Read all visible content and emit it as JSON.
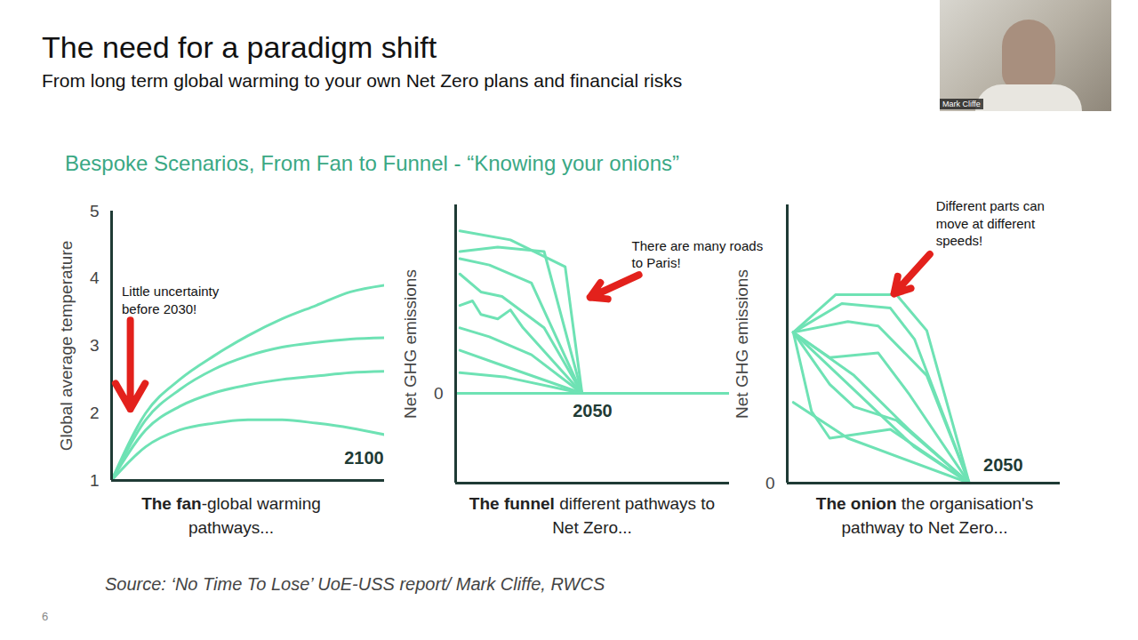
{
  "title": "The need for a paradigm shift",
  "subtitle": "From long term global warming to your own Net Zero plans and financial risks",
  "heading": "Bespoke Scenarios, From Fan to Funnel - “Knowing your onions”",
  "source": "Source: ‘No Time To Lose’ UoE-USS report/ Mark Cliffe, RWCS",
  "page_number": "6",
  "presenter": "Mark Cliffe",
  "chart_data": [
    {
      "type": "line",
      "caption": "The fan-global warming pathways...",
      "caption_bold": "The fan",
      "ylabel": "Global average temperature",
      "xlim": [
        2020,
        2100
      ],
      "xticks": [],
      "ylim": [
        1,
        5
      ],
      "yticks": [
        1,
        2,
        3,
        4,
        5
      ],
      "tick_labels": "y",
      "color": "#6ee2b4",
      "line_style": "smooth",
      "series": [
        {
          "x": [
            2020,
            2030,
            2040,
            2050,
            2060,
            2070,
            2080,
            2090,
            2100
          ],
          "values": [
            1,
            2.0,
            2.5,
            2.85,
            3.15,
            3.4,
            3.6,
            3.8,
            3.9
          ]
        },
        {
          "x": [
            2020,
            2030,
            2040,
            2050,
            2060,
            2070,
            2080,
            2090,
            2100
          ],
          "values": [
            1,
            1.9,
            2.35,
            2.65,
            2.85,
            2.98,
            3.05,
            3.1,
            3.12
          ]
        },
        {
          "x": [
            2020,
            2030,
            2040,
            2050,
            2060,
            2070,
            2080,
            2090,
            2100
          ],
          "values": [
            1,
            1.75,
            2.1,
            2.3,
            2.42,
            2.5,
            2.55,
            2.6,
            2.62
          ]
        },
        {
          "x": [
            2020,
            2030,
            2040,
            2050,
            2060,
            2070,
            2080,
            2090,
            2100
          ],
          "values": [
            1,
            1.5,
            1.75,
            1.85,
            1.9,
            1.9,
            1.85,
            1.78,
            1.68
          ]
        }
      ],
      "annotations": [
        {
          "text": [
            "Little uncertainty",
            "before 2030!"
          ],
          "x": 2023,
          "y": 3.92,
          "arrow": {
            "x1": 2025.5,
            "y1": 3.38,
            "x2": 2025.5,
            "y2": 2.06
          }
        },
        {
          "text": [
            "2100"
          ],
          "x": 2094,
          "y": 1.33
        }
      ]
    },
    {
      "type": "line",
      "caption": "The funnel different pathways to Net Zero...",
      "caption_bold": "The funnel",
      "ylabel": "Net GHG emissions",
      "xlim": [
        2020,
        2085
      ],
      "xticks": [],
      "ylim": [
        -1,
        2.1
      ],
      "yticks": [
        0
      ],
      "tick_labels": "y",
      "color": "#6ee2b4",
      "line_style": "solid",
      "series": [
        {
          "x": [
            2020,
            2085
          ],
          "values": [
            0,
            0
          ]
        },
        {
          "x": [
            2021,
            2033,
            2046,
            2050
          ],
          "values": [
            1.81,
            1.71,
            1.41,
            0
          ]
        },
        {
          "x": [
            2021,
            2030,
            2041,
            2050
          ],
          "values": [
            1.58,
            1.63,
            1.58,
            0
          ]
        },
        {
          "x": [
            2021,
            2028,
            2038,
            2050
          ],
          "values": [
            1.5,
            1.43,
            1.23,
            0
          ]
        },
        {
          "x": [
            2021,
            2026,
            2031,
            2041,
            2050
          ],
          "values": [
            1.33,
            1.13,
            1.08,
            0.73,
            0
          ]
        },
        {
          "x": [
            2021,
            2024,
            2026,
            2030,
            2033,
            2036,
            2050
          ],
          "values": [
            0.98,
            1.03,
            0.88,
            0.83,
            0.93,
            0.73,
            0
          ]
        },
        {
          "x": [
            2021,
            2028,
            2038,
            2050
          ],
          "values": [
            0.73,
            0.63,
            0.43,
            0
          ]
        },
        {
          "x": [
            2021,
            2030,
            2050
          ],
          "values": [
            0.48,
            0.33,
            0
          ]
        },
        {
          "x": [
            2021,
            2032,
            2050
          ],
          "values": [
            0.23,
            0.18,
            0
          ]
        }
      ],
      "annotations": [
        {
          "text": [
            "There are many roads",
            "to Paris!"
          ],
          "x": 2061.8,
          "y": 1.73,
          "arrow": {
            "x1": 2063.5,
            "y1": 1.32,
            "x2": 2051.9,
            "y2": 1.07
          }
        },
        {
          "text": [
            "2050"
          ],
          "x": 2052.5,
          "y": -0.2
        }
      ]
    },
    {
      "type": "line",
      "caption": "The onion the organisation's pathway to Net Zero...",
      "caption_bold": "The onion",
      "ylabel": "Net GHG emissions",
      "xlim": [
        2020,
        2065
      ],
      "xticks": [],
      "ylim": [
        0,
        3.1
      ],
      "yticks": [
        0
      ],
      "tick_labels": "y",
      "color": "#6ee2b4",
      "line_style": "solid",
      "series": [
        {
          "x": [
            2021,
            2028,
            2038,
            2043,
            2050
          ],
          "values": [
            1.68,
            2.1,
            2.1,
            1.7,
            0
          ]
        },
        {
          "x": [
            2021,
            2029,
            2037,
            2041,
            2050
          ],
          "values": [
            1.68,
            2.0,
            1.95,
            1.6,
            0
          ]
        },
        {
          "x": [
            2021,
            2030,
            2035,
            2043,
            2050
          ],
          "values": [
            1.68,
            1.8,
            1.75,
            1.2,
            0
          ]
        },
        {
          "x": [
            2021,
            2027,
            2035,
            2040,
            2050
          ],
          "values": [
            1.68,
            1.4,
            1.45,
            1.0,
            0
          ]
        },
        {
          "x": [
            2021,
            2027,
            2031,
            2038,
            2050
          ],
          "values": [
            1.68,
            1.1,
            0.85,
            0.7,
            0
          ]
        },
        {
          "x": [
            2021,
            2024,
            2027,
            2037,
            2050
          ],
          "values": [
            1.68,
            0.8,
            0.5,
            0.6,
            0
          ]
        },
        {
          "x": [
            2021,
            2041,
            2050
          ],
          "values": [
            1.68,
            0.4,
            0
          ]
        },
        {
          "x": [
            2021,
            2031,
            2040,
            2050
          ],
          "values": [
            1.68,
            1.2,
            0.6,
            0
          ]
        },
        {
          "x": [
            2021,
            2030,
            2050
          ],
          "values": [
            0.9,
            0.5,
            0
          ]
        }
      ],
      "annotations": [
        {
          "text": [
            "Different parts can",
            "move at different",
            "speeds!"
          ],
          "x": 2044.5,
          "y": 3.17,
          "arrow": {
            "x1": 2043.5,
            "y1": 2.55,
            "x2": 2037.6,
            "y2": 2.11
          }
        },
        {
          "text": [
            "2050"
          ],
          "x": 2055.6,
          "y": 0.2
        }
      ]
    }
  ]
}
